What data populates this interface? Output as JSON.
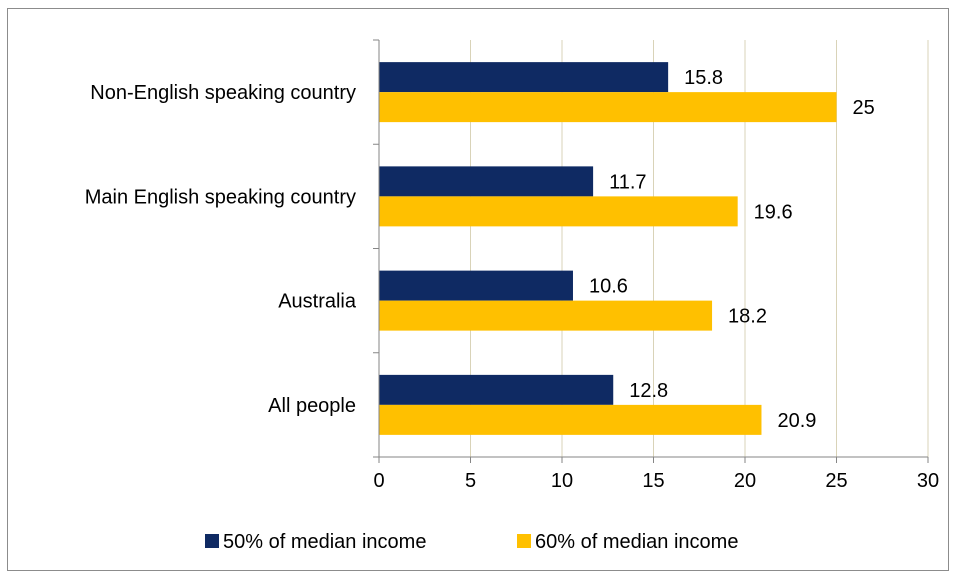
{
  "chart_data": {
    "type": "bar",
    "orientation": "horizontal",
    "title": "",
    "xlabel": "",
    "ylabel": "",
    "categories": [
      "Non-English speaking country",
      "Main English speaking country",
      "Australia",
      "All people"
    ],
    "series": [
      {
        "name": "50% of median income",
        "color": "#0f2a63",
        "values": [
          15.8,
          11.7,
          10.6,
          12.8
        ]
      },
      {
        "name": "60% of median income",
        "color": "#ffc000",
        "values": [
          25,
          19.6,
          18.2,
          20.9
        ]
      }
    ],
    "xlim": [
      0,
      30
    ],
    "xticks": [
      0,
      5,
      10,
      15,
      20,
      25,
      30
    ],
    "data_labels": true,
    "grid": "vertical",
    "grid_color": "#d9d3b8",
    "legend": "bottom"
  }
}
